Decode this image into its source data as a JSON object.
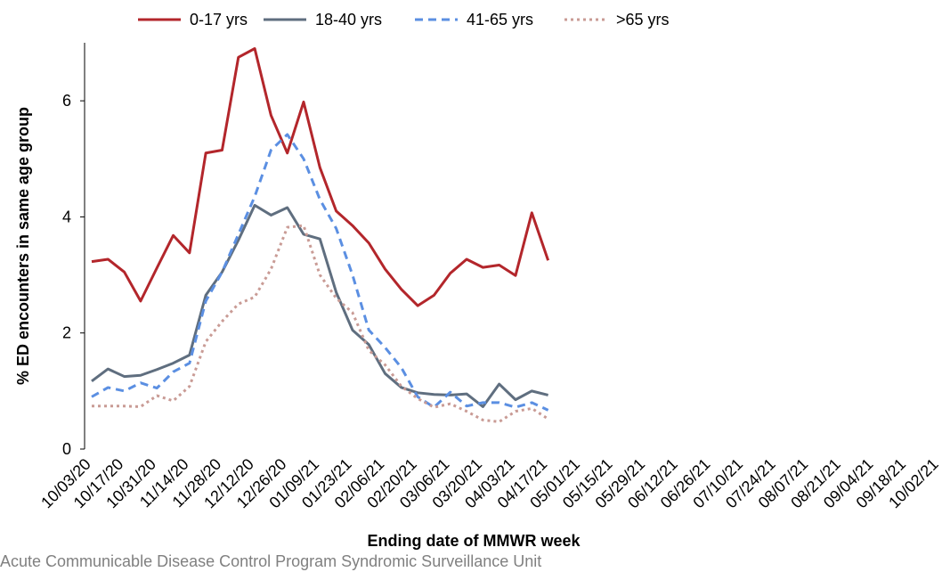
{
  "chart_data": {
    "type": "line",
    "y_label": "% ED encounters in same age group",
    "x_label": "Ending date of MMWR week",
    "caption": "Acute Communicable Disease Control Program Syndromic Surveillance Unit",
    "categories": [
      "10/03/20",
      null,
      "10/17/20",
      null,
      "10/31/20",
      null,
      "11/14/20",
      null,
      "11/28/20",
      null,
      "12/12/20",
      null,
      "12/26/20",
      null,
      "01/09/21",
      null,
      "01/23/21",
      null,
      "02/06/21",
      null,
      "02/20/21",
      null,
      "03/06/21",
      null,
      "03/20/21",
      null,
      "04/03/21",
      null,
      "04/17/21",
      null,
      "05/01/21",
      null,
      "05/15/21",
      null,
      "05/29/21",
      null,
      "06/12/21",
      null,
      "06/26/21",
      null,
      "07/10/21",
      null,
      "07/24/21",
      null,
      "08/07/21",
      null,
      "08/21/21",
      null,
      "09/04/21",
      null,
      "09/18/21",
      null,
      "10/02/21"
    ],
    "series": [
      {
        "name": "0-17 yrs",
        "color": "#b3262b",
        "dash": "solid",
        "values": [
          3.23,
          3.27,
          3.05,
          2.55,
          3.12,
          3.68,
          3.38,
          5.1,
          5.15,
          6.75,
          6.9,
          5.75,
          5.1,
          5.98,
          4.85,
          4.1,
          3.85,
          3.55,
          3.1,
          2.75,
          2.47,
          2.65,
          3.03,
          3.27,
          3.13,
          3.17,
          2.99,
          4.07,
          3.25,
          null,
          null,
          null,
          null,
          null,
          null,
          null,
          null,
          null,
          null,
          null,
          null,
          null,
          null,
          null,
          null,
          null,
          null,
          null,
          null,
          null,
          null,
          null,
          null
        ]
      },
      {
        "name": "18-40 yrs",
        "color": "#5f6e7f",
        "dash": "solid",
        "values": [
          1.17,
          1.38,
          1.25,
          1.27,
          1.37,
          1.48,
          1.62,
          2.65,
          3.05,
          3.6,
          4.2,
          4.03,
          4.16,
          3.7,
          3.62,
          2.7,
          2.05,
          1.8,
          1.3,
          1.06,
          0.97,
          0.94,
          0.93,
          0.95,
          0.73,
          1.12,
          0.85,
          1.0,
          0.93,
          null,
          null,
          null,
          null,
          null,
          null,
          null,
          null,
          null,
          null,
          null,
          null,
          null,
          null,
          null,
          null,
          null,
          null,
          null,
          null,
          null,
          null,
          null,
          null
        ]
      },
      {
        "name": "41-65 yrs",
        "color": "#5b8fe2",
        "dash": "dashed",
        "values": [
          0.9,
          1.06,
          1.0,
          1.14,
          1.05,
          1.33,
          1.48,
          2.55,
          3.05,
          3.7,
          4.35,
          5.15,
          5.42,
          5.0,
          4.3,
          3.8,
          3.0,
          2.05,
          1.75,
          1.4,
          0.9,
          0.72,
          0.98,
          0.74,
          0.8,
          0.8,
          0.72,
          0.8,
          0.67,
          null,
          null,
          null,
          null,
          null,
          null,
          null,
          null,
          null,
          null,
          null,
          null,
          null,
          null,
          null,
          null,
          null,
          null,
          null,
          null,
          null,
          null,
          null,
          null
        ]
      },
      {
        "name": ">65 yrs",
        "color": "#c99b95",
        "dash": "dotted",
        "values": [
          0.74,
          0.74,
          0.74,
          0.73,
          0.92,
          0.83,
          1.08,
          1.85,
          2.2,
          2.5,
          2.62,
          3.1,
          3.82,
          3.85,
          3.0,
          2.6,
          2.35,
          1.7,
          1.45,
          1.08,
          0.87,
          0.72,
          0.78,
          0.65,
          0.5,
          0.47,
          0.65,
          0.7,
          0.52,
          null,
          null,
          null,
          null,
          null,
          null,
          null,
          null,
          null,
          null,
          null,
          null,
          null,
          null,
          null,
          null,
          null,
          null,
          null,
          null,
          null,
          null,
          null,
          null
        ]
      }
    ],
    "ylim": [
      0,
      7
    ],
    "yticks": [
      0,
      2,
      4,
      6
    ],
    "grid": false,
    "legend": "top"
  }
}
